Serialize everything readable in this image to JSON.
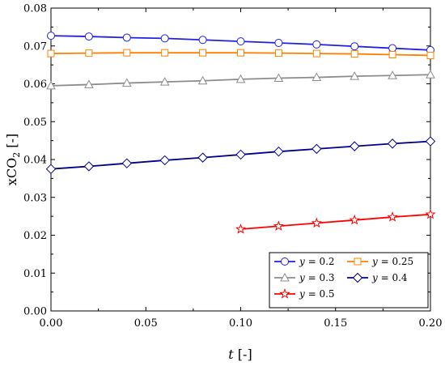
{
  "chart_data": {
    "type": "line",
    "title": "",
    "xlabel_italic": "t",
    "xlabel_rest": " [-]",
    "ylabel_prefix": "xCO",
    "ylabel_sub": "2",
    "ylabel_suffix": " [-]",
    "xlim": [
      0,
      0.2
    ],
    "ylim": [
      0,
      0.08
    ],
    "xticks": [
      0,
      0.05,
      0.1,
      0.15,
      0.2
    ],
    "xtick_labels": [
      "0.00",
      "0.05",
      "0.10",
      "0.15",
      "0.20"
    ],
    "yticks": [
      0,
      0.01,
      0.02,
      0.03,
      0.04,
      0.05,
      0.06,
      0.07,
      0.08
    ],
    "ytick_labels": [
      "0.00",
      "0.01",
      "0.02",
      "0.03",
      "0.04",
      "0.05",
      "0.06",
      "0.07",
      "0.08"
    ],
    "grid": false,
    "legend_position": "bottom-right",
    "series": [
      {
        "name": "y = 0.2",
        "legend_var": "y",
        "legend_rest": " = 0.2",
        "color": "#1f1fe6",
        "marker": "circle",
        "x": [
          0,
          0.02,
          0.04,
          0.06,
          0.08,
          0.1,
          0.12,
          0.14,
          0.16,
          0.18,
          0.2
        ],
        "y": [
          0.0727,
          0.0725,
          0.0722,
          0.072,
          0.0716,
          0.0712,
          0.0708,
          0.0704,
          0.0699,
          0.0694,
          0.0689
        ]
      },
      {
        "name": "y = 0.25",
        "legend_var": "y",
        "legend_rest": " = 0.25",
        "color": "#ff8000",
        "marker": "square",
        "x": [
          0,
          0.02,
          0.04,
          0.06,
          0.08,
          0.1,
          0.12,
          0.14,
          0.16,
          0.18,
          0.2
        ],
        "y": [
          0.068,
          0.0681,
          0.0682,
          0.0682,
          0.0682,
          0.0682,
          0.0681,
          0.068,
          0.0679,
          0.0677,
          0.0675
        ]
      },
      {
        "name": "y = 0.3",
        "legend_var": "y",
        "legend_rest": " = 0.3",
        "color": "#8c8c8c",
        "marker": "triangle",
        "x": [
          0,
          0.02,
          0.04,
          0.06,
          0.08,
          0.1,
          0.12,
          0.14,
          0.16,
          0.18,
          0.2
        ],
        "y": [
          0.0595,
          0.0598,
          0.0602,
          0.0605,
          0.0608,
          0.0612,
          0.0615,
          0.0617,
          0.062,
          0.0622,
          0.0624
        ]
      },
      {
        "name": "y = 0.4",
        "legend_var": "y",
        "legend_rest": " = 0.4",
        "color": "#00008b",
        "marker": "diamond",
        "x": [
          0,
          0.02,
          0.04,
          0.06,
          0.08,
          0.1,
          0.12,
          0.14,
          0.16,
          0.18,
          0.2
        ],
        "y": [
          0.0375,
          0.0382,
          0.039,
          0.0398,
          0.0405,
          0.0413,
          0.0421,
          0.0428,
          0.0435,
          0.0442,
          0.0448
        ]
      },
      {
        "name": "y = 0.5",
        "legend_var": "y",
        "legend_rest": " = 0.5",
        "color": "#ff0000",
        "marker": "star",
        "x": [
          0.1,
          0.12,
          0.14,
          0.16,
          0.18,
          0.2
        ],
        "y": [
          0.0216,
          0.0224,
          0.0232,
          0.024,
          0.0248,
          0.0255
        ]
      }
    ]
  }
}
